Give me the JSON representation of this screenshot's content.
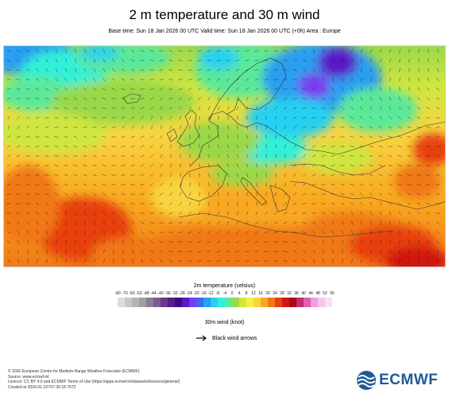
{
  "title": "2 m temperature and 30 m wind",
  "subtitle": "Base time: Sun 18 Jan 2026 00 UTC Valid time: Sun 18 Jan 2026 00 UTC (+0h) Area : Europe",
  "legend": {
    "title": "2m temperature (celsius)",
    "ticks": [
      "-80",
      "-70",
      "-60",
      "-52",
      "-48",
      "-44",
      "-40",
      "-36",
      "-32",
      "-28",
      "-24",
      "-20",
      "-16",
      "-12",
      "-8",
      "-4",
      "0",
      "4",
      "8",
      "12",
      "16",
      "20",
      "24",
      "28",
      "32",
      "36",
      "40",
      "44",
      "48",
      "52",
      "56"
    ],
    "colors": [
      "#dcdcdc",
      "#c8c8c8",
      "#b4b4b4",
      "#9f9fa6",
      "#8a7f95",
      "#7a5e8c",
      "#6a3a8a",
      "#5a1a88",
      "#3e0a82",
      "#5a18c8",
      "#7a3af0",
      "#3a6af0",
      "#2a9ef0",
      "#28d0f0",
      "#30f0d8",
      "#5ce89a",
      "#9ad84a",
      "#cfe640",
      "#f8f040",
      "#f8d440",
      "#f8a820",
      "#f07818",
      "#e84010",
      "#d01810",
      "#a80818",
      "#c03070",
      "#e060b0",
      "#f0a0d8",
      "#f0c8e8",
      "#f8e0f0"
    ]
  },
  "wind": {
    "title": "30m wind (knot)",
    "arrow_label": "Black wind arrows"
  },
  "footer": [
    "© 2026 European Centre for Medium-Range Weather Forecasts (ECMWF)",
    "Source: www.ecmwf.int",
    "Licence: CC BY 4.0 and ECMWF Terms of Use (https://apps.ecmwf.int/datasets/licences/general/)",
    "Created at 2026-01-22T07:30:18.767Z"
  ],
  "logo_text": "ECMWF"
}
